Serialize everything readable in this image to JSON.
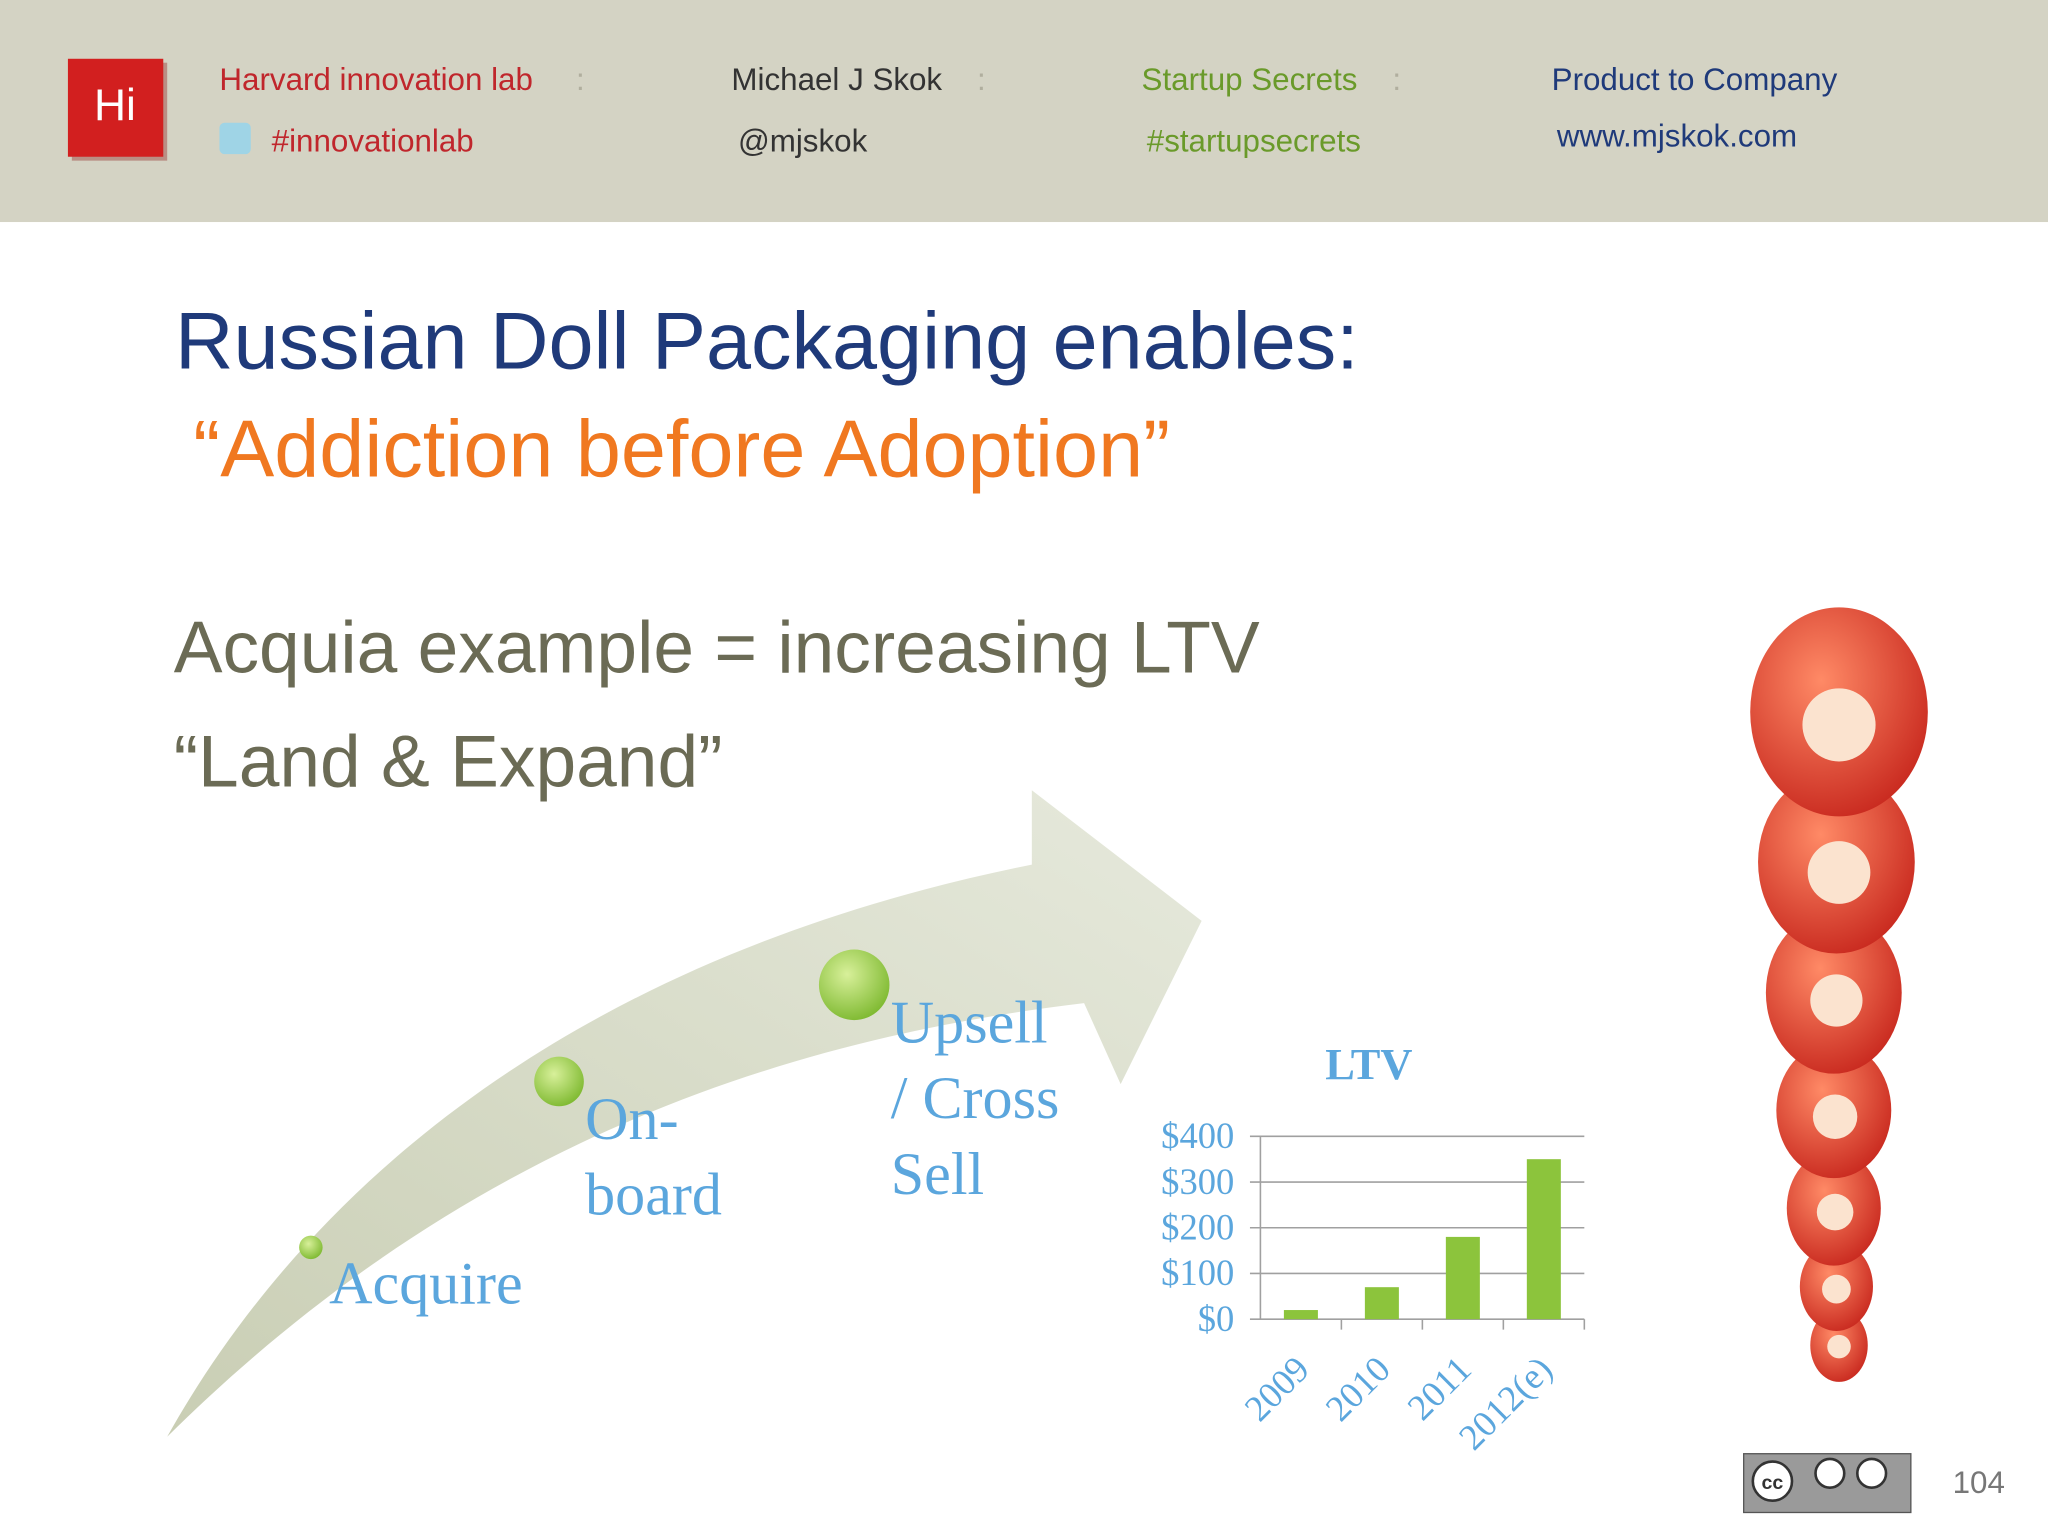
{
  "header": {
    "logo": "Hi",
    "separator": ":",
    "items": [
      {
        "top": "Harvard innovation lab",
        "bottom": "#innovationlab"
      },
      {
        "top": "Michael J Skok",
        "bottom": "@mjskok"
      },
      {
        "top": "Startup Secrets",
        "bottom": "#startupsecrets"
      },
      {
        "top": "Product to Company",
        "bottom": "www.mjskok.com"
      }
    ]
  },
  "title": "Russian Doll Packaging enables:",
  "subtitle": "“Addiction before Adoption”",
  "body": [
    "Acquia example = increasing LTV",
    "“Land & Expand”"
  ],
  "steps": [
    {
      "lines": [
        "Acquire"
      ]
    },
    {
      "lines": [
        "On-",
        "board"
      ]
    },
    {
      "lines": [
        "Upsell",
        "/ Cross",
        "Sell"
      ]
    }
  ],
  "chart_data": {
    "type": "bar",
    "title": "LTV",
    "categories": [
      "2009",
      "2010",
      "2011",
      "2012(e)"
    ],
    "values": [
      20,
      70,
      180,
      350
    ],
    "color": "#8cc43c",
    "ylim": [
      0,
      400
    ],
    "yticks": [
      {
        "value": 0,
        "label": "$0"
      },
      {
        "value": 100,
        "label": "$100"
      },
      {
        "value": 200,
        "label": "$200"
      },
      {
        "value": 300,
        "label": "$300"
      },
      {
        "value": 400,
        "label": "$400"
      }
    ],
    "grid": true
  },
  "license": "cc",
  "page_number": "104"
}
